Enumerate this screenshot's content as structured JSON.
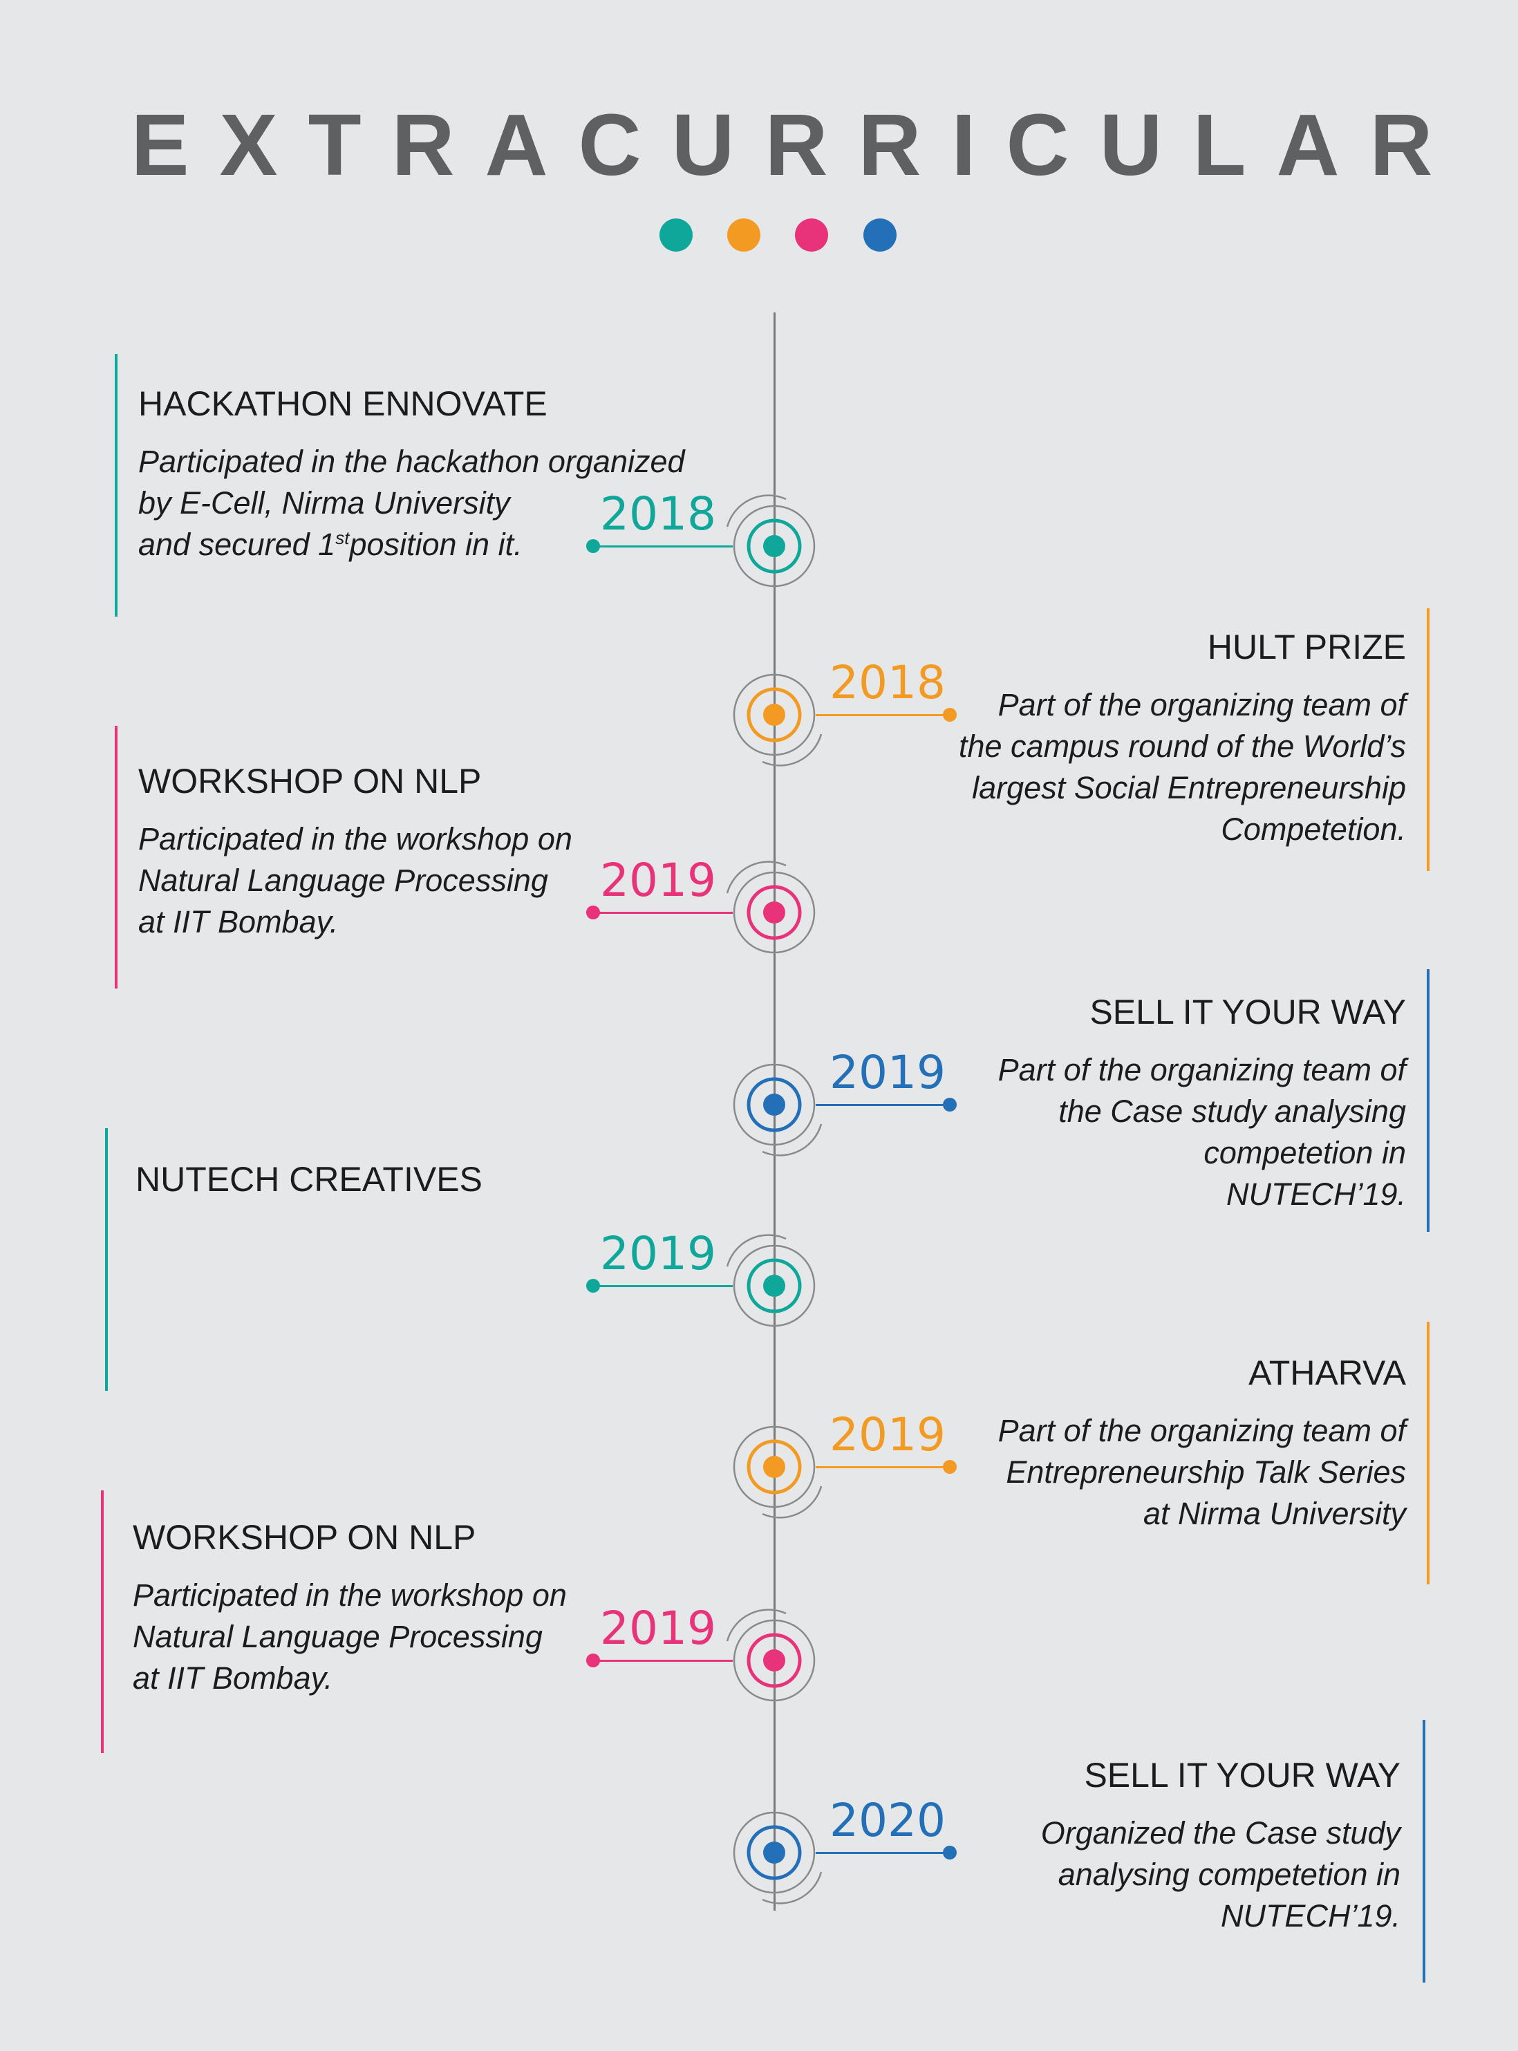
{
  "title": "EXTRACURRICULAR",
  "colors": {
    "teal": "#10a79b",
    "orange": "#f29a22",
    "pink": "#e8327a",
    "blue": "#2470b8",
    "title": "#5f6061",
    "background": "#e6e7e9"
  },
  "header_dots": [
    "teal",
    "orange",
    "pink",
    "blue"
  ],
  "events": [
    {
      "year": "2018",
      "color": "teal",
      "heading": "HACKATHON ENNOVATE",
      "lines": [
        "Participated in the hackathon organized",
        "by E-Cell, Nirma University",
        "and secured 1",
        "st",
        "position in it."
      ]
    },
    {
      "year": "2018",
      "color": "orange",
      "heading": "HULT PRIZE",
      "lines": [
        "Part of the organizing team of",
        "the campus round of the World’s",
        "largest Social Entrepreneurship",
        "Competetion."
      ]
    },
    {
      "year": "2019",
      "color": "pink",
      "heading": "WORKSHOP ON NLP",
      "lines": [
        "Participated in the workshop on",
        "Natural Language Processing",
        "at IIT Bombay."
      ]
    },
    {
      "year": "2019",
      "color": "blue",
      "heading": "SELL IT YOUR WAY",
      "lines": [
        "Part of the organizing team of",
        "the Case study analysing",
        "competetion in",
        "NUTECH’19."
      ]
    },
    {
      "year": "2019",
      "color": "teal",
      "heading": "NUTECH CREATIVES",
      "lines": []
    },
    {
      "year": "2019",
      "color": "orange",
      "heading": "ATHARVA",
      "lines": [
        "Part of the organizing team of",
        "Entrepreneurship Talk Series",
        "at Nirma University"
      ]
    },
    {
      "year": "2019",
      "color": "pink",
      "heading": "WORKSHOP ON NLP",
      "lines": [
        "Participated in the workshop on",
        "Natural Language Processing",
        "at IIT Bombay."
      ]
    },
    {
      "year": "2020",
      "color": "blue",
      "heading": "SELL IT YOUR WAY",
      "lines": [
        "Organized the Case study",
        "analysing competetion in",
        "NUTECH’19."
      ]
    }
  ]
}
